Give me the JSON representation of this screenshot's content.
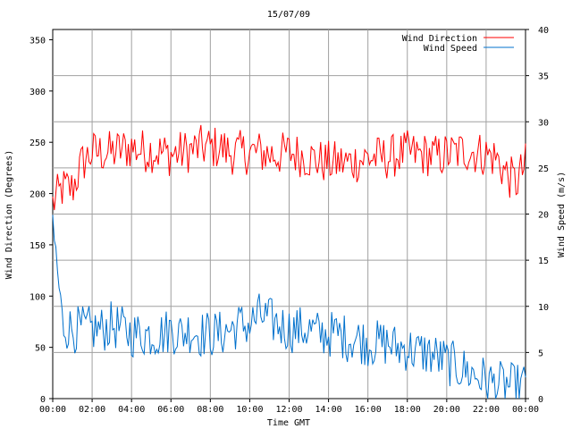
{
  "chart_data": {
    "type": "line",
    "title": "15/07/09",
    "xlabel": "Time GMT",
    "ylabel_left": "Wind Direction (Degrees)",
    "ylabel_right": "Wind Speed (m/s)",
    "x_ticks": [
      "00:00",
      "02:00",
      "04:00",
      "06:00",
      "08:00",
      "10:00",
      "12:00",
      "14:00",
      "16:00",
      "18:00",
      "20:00",
      "22:00",
      "00:00"
    ],
    "x_range_hours": [
      0,
      24
    ],
    "y_left": {
      "range": [
        0,
        360
      ],
      "ticks": [
        "0",
        "50",
        "100",
        "150",
        "200",
        "250",
        "300",
        "350"
      ]
    },
    "y_right": {
      "range": [
        0,
        40
      ],
      "ticks": [
        "0",
        "5",
        "10",
        "15",
        "20",
        "25",
        "30",
        "35",
        "40"
      ]
    },
    "grid": true,
    "legend": "top-right",
    "series": [
      {
        "name": "Wind Direction",
        "axis": "left",
        "color": "#ff0000",
        "x_hours": [
          0,
          0.5,
          1,
          1.5,
          2,
          2.5,
          3,
          3.5,
          4,
          4.5,
          5,
          5.5,
          6,
          6.5,
          7,
          7.5,
          8,
          8.5,
          9,
          9.5,
          10,
          10.5,
          11,
          11.5,
          12,
          12.5,
          13,
          13.5,
          14,
          14.5,
          15,
          15.5,
          16,
          16.5,
          17,
          17.5,
          18,
          18.5,
          19,
          19.5,
          20,
          20.5,
          21,
          21.5,
          22,
          22.5,
          23,
          23.5,
          24
        ],
        "values": [
          190,
          205,
          205,
          230,
          240,
          240,
          240,
          243,
          245,
          242,
          242,
          240,
          238,
          240,
          242,
          245,
          245,
          245,
          240,
          240,
          240,
          240,
          238,
          238,
          240,
          238,
          235,
          232,
          230,
          230,
          230,
          232,
          235,
          235,
          235,
          238,
          240,
          238,
          238,
          236,
          238,
          240,
          242,
          240,
          238,
          235,
          220,
          210,
          228
        ]
      },
      {
        "name": "Wind Speed",
        "axis": "right",
        "color": "#0070cc",
        "x_hours": [
          0,
          0.5,
          1,
          1.5,
          2,
          2.5,
          3,
          3.5,
          4,
          4.5,
          5,
          5.5,
          6,
          6.5,
          7,
          7.5,
          8,
          8.5,
          9,
          9.5,
          10,
          10.5,
          11,
          11.5,
          12,
          12.5,
          13,
          13.5,
          14,
          14.5,
          15,
          15.5,
          16,
          16.5,
          17,
          17.5,
          18,
          18.5,
          19,
          19.5,
          20,
          20.5,
          21,
          21.5,
          22,
          22.5,
          23,
          23.5,
          24
        ],
        "values": [
          19,
          8,
          7.5,
          7.5,
          7.5,
          7.5,
          8,
          7.5,
          7,
          7,
          7,
          7,
          7.5,
          7,
          7.5,
          7,
          7,
          7,
          7.5,
          8,
          8,
          9,
          8.5,
          8,
          7.5,
          7.5,
          7.5,
          7,
          7,
          7,
          6.5,
          6.5,
          6,
          6,
          6,
          5.5,
          5.5,
          5,
          5,
          4.5,
          4,
          3.5,
          3,
          2.5,
          2,
          1.5,
          1.5,
          1.2,
          1.5
        ]
      }
    ]
  }
}
